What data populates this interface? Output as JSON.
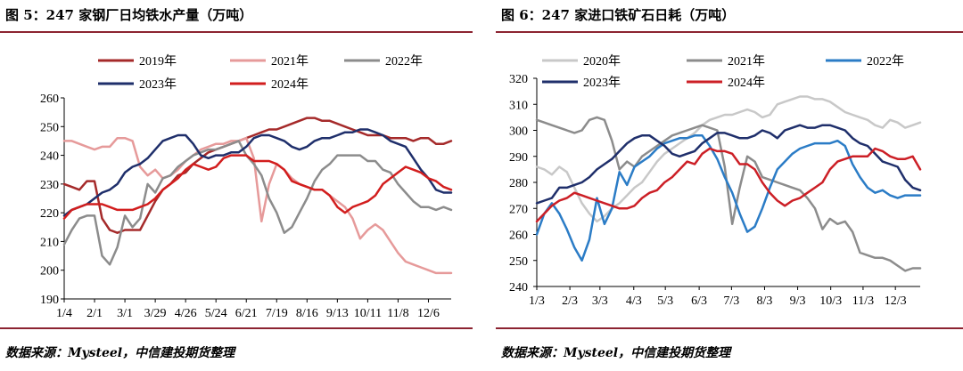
{
  "charts": [
    {
      "title": "图 5：247 家钢厂日均铁水产量（万吨）",
      "source": "数据来源：Mysteel，中信建投期货整理",
      "chart_data": {
        "type": "line",
        "ylim": [
          190,
          260
        ],
        "yticks": [
          190,
          200,
          210,
          220,
          230,
          240,
          250,
          260
        ],
        "xlim": [
          0,
          51
        ],
        "xticks": [
          {
            "label": "1/4",
            "x": 0
          },
          {
            "label": "2/1",
            "x": 4
          },
          {
            "label": "3/1",
            "x": 8
          },
          {
            "label": "3/29",
            "x": 12
          },
          {
            "label": "4/26",
            "x": 16
          },
          {
            "label": "5/24",
            "x": 20
          },
          {
            "label": "6/21",
            "x": 24
          },
          {
            "label": "7/19",
            "x": 28
          },
          {
            "label": "8/16",
            "x": 32
          },
          {
            "label": "9/13",
            "x": 36
          },
          {
            "label": "10/11",
            "x": 40
          },
          {
            "label": "11/8",
            "x": 44
          },
          {
            "label": "12/6",
            "x": 48
          }
        ],
        "legend_rows": [
          [
            "2019年",
            "2021年",
            "2022年"
          ],
          [
            "2023年",
            "2024年"
          ]
        ],
        "series": [
          {
            "name": "2019年",
            "color": "#a52a2a",
            "values": [
              230,
              229,
              228,
              231,
              231,
              218,
              214,
              213,
              214,
              214,
              214,
              219,
              224,
              228,
              230,
              233,
              234,
              237,
              239,
              241,
              242,
              243,
              244,
              245,
              246,
              247,
              248,
              249,
              249,
              250,
              251,
              252,
              253,
              253,
              252,
              252,
              251,
              250,
              249,
              248,
              247,
              247,
              247,
              246,
              246,
              246,
              245,
              246,
              246,
              244,
              244,
              245
            ]
          },
          {
            "name": "2021年",
            "color": "#e69a9a",
            "values": [
              245,
              245,
              244,
              243,
              242,
              243,
              243,
              246,
              246,
              245,
              236,
              233,
              235,
              232,
              233,
              235,
              238,
              240,
              242,
              243,
              244,
              244,
              245,
              245,
              246,
              239,
              217,
              230,
              237,
              235,
              232,
              230,
              229,
              228,
              228,
              226,
              224,
              222,
              218,
              211,
              214,
              216,
              214,
              210,
              206,
              203,
              202,
              201,
              200,
              199,
              199,
              199
            ]
          },
          {
            "name": "2022年",
            "color": "#8c8c8c",
            "values": [
              209,
              214,
              218,
              219,
              219,
              205,
              202,
              208,
              219,
              215,
              218,
              230,
              227,
              232,
              233,
              236,
              238,
              240,
              241,
              242,
              242,
              243,
              244,
              245,
              240,
              237,
              233,
              225,
              220,
              213,
              215,
              220,
              225,
              231,
              235,
              237,
              240,
              240,
              240,
              240,
              238,
              238,
              235,
              234,
              230,
              227,
              224,
              222,
              222,
              221,
              222,
              221
            ]
          },
          {
            "name": "2023年",
            "color": "#1f2f6b",
            "values": [
              219,
              221,
              222,
              223,
              225,
              227,
              228,
              230,
              234,
              236,
              237,
              239,
              242,
              245,
              246,
              247,
              247,
              244,
              240,
              239,
              240,
              240,
              241,
              241,
              243,
              246,
              247,
              247,
              246,
              245,
              243,
              242,
              243,
              245,
              246,
              246,
              247,
              248,
              248,
              249,
              249,
              248,
              247,
              245,
              244,
              243,
              239,
              235,
              232,
              228,
              227,
              227
            ]
          },
          {
            "name": "2024年",
            "color": "#d21e1e",
            "values": [
              218,
              221,
              222,
              223,
              223,
              223,
              222,
              221,
              221,
              221,
              222,
              223,
              225,
              228,
              230,
              232,
              235,
              237,
              236,
              235,
              236,
              239,
              240,
              240,
              240,
              238,
              238,
              238,
              237,
              235,
              231,
              230,
              229,
              228,
              228,
              226,
              222,
              220,
              222,
              223,
              224,
              226,
              230,
              232,
              234,
              236,
              235,
              234,
              232,
              231,
              229,
              228
            ]
          }
        ]
      }
    },
    {
      "title": "图 6：247 家进口铁矿石日耗（万吨）",
      "source": "数据来源：Mysteel，中信建投期货整理",
      "chart_data": {
        "type": "line",
        "ylim": [
          240,
          320
        ],
        "yticks": [
          240,
          250,
          260,
          270,
          280,
          290,
          300,
          310,
          320
        ],
        "xlim": [
          0,
          51
        ],
        "xticks": [
          {
            "label": "1/3",
            "x": 0
          },
          {
            "label": "2/3",
            "x": 4.4
          },
          {
            "label": "3/3",
            "x": 8.4
          },
          {
            "label": "4/3",
            "x": 12.9
          },
          {
            "label": "5/3",
            "x": 17.1
          },
          {
            "label": "6/3",
            "x": 21.6
          },
          {
            "label": "7/3",
            "x": 25.9
          },
          {
            "label": "8/3",
            "x": 30.3
          },
          {
            "label": "9/3",
            "x": 34.7
          },
          {
            "label": "10/3",
            "x": 39.1
          },
          {
            "label": "11/3",
            "x": 43.4
          },
          {
            "label": "12/3",
            "x": 47.7
          }
        ],
        "legend_rows": [
          [
            "2020年",
            "2021年",
            "2022年"
          ],
          [
            "2023年",
            "2024年"
          ]
        ],
        "series": [
          {
            "name": "2020年",
            "color": "#c8c8c8",
            "values": [
              286,
              285,
              283,
              286,
              284,
              278,
              272,
              268,
              265,
              267,
              270,
              272,
              275,
              278,
              280,
              284,
              288,
              291,
              293,
              295,
              297,
              299,
              302,
              304,
              305,
              306,
              306,
              307,
              308,
              307,
              305,
              306,
              310,
              311,
              312,
              313,
              313,
              312,
              312,
              311,
              309,
              307,
              306,
              305,
              304,
              302,
              301,
              304,
              303,
              301,
              302,
              303
            ]
          },
          {
            "name": "2021年",
            "color": "#8c8c8c",
            "values": [
              304,
              303,
              302,
              301,
              300,
              299,
              300,
              304,
              305,
              304,
              296,
              285,
              288,
              286,
              290,
              292,
              294,
              296,
              298,
              299,
              300,
              301,
              302,
              301,
              300,
              286,
              264,
              278,
              290,
              288,
              282,
              281,
              280,
              279,
              278,
              277,
              274,
              270,
              262,
              266,
              264,
              265,
              261,
              253,
              252,
              251,
              251,
              250,
              248,
              246,
              247,
              247
            ]
          },
          {
            "name": "2022年",
            "color": "#2b7cc6",
            "values": [
              260,
              268,
              272,
              268,
              262,
              255,
              250,
              258,
              274,
              264,
              270,
              284,
              279,
              286,
              288,
              290,
              293,
              295,
              296,
              297,
              297,
              298,
              298,
              294,
              289,
              282,
              276,
              268,
              261,
              263,
              270,
              278,
              285,
              288,
              291,
              293,
              294,
              295,
              295,
              295,
              296,
              294,
              287,
              282,
              278,
              276,
              277,
              275,
              274,
              275,
              275,
              275
            ]
          },
          {
            "name": "2023年",
            "color": "#1f2f6b",
            "values": [
              272,
              273,
              274,
              278,
              278,
              279,
              280,
              282,
              285,
              287,
              289,
              292,
              295,
              297,
              298,
              298,
              296,
              294,
              291,
              290,
              291,
              292,
              295,
              297,
              299,
              299,
              298,
              297,
              297,
              298,
              300,
              299,
              297,
              300,
              301,
              302,
              301,
              301,
              302,
              302,
              301,
              300,
              297,
              295,
              294,
              291,
              288,
              287,
              286,
              281,
              278,
              277
            ]
          },
          {
            "name": "2024年",
            "color": "#cc1f26",
            "values": [
              265,
              268,
              271,
              273,
              274,
              276,
              275,
              274,
              273,
              272,
              271,
              270,
              270,
              271,
              274,
              276,
              277,
              280,
              282,
              285,
              288,
              287,
              291,
              293,
              292,
              292,
              291,
              287,
              287,
              285,
              280,
              276,
              273,
              271,
              273,
              274,
              276,
              278,
              280,
              285,
              288,
              289,
              290,
              290,
              290,
              293,
              292,
              290,
              289,
              289,
              290,
              285
            ]
          }
        ]
      }
    }
  ]
}
